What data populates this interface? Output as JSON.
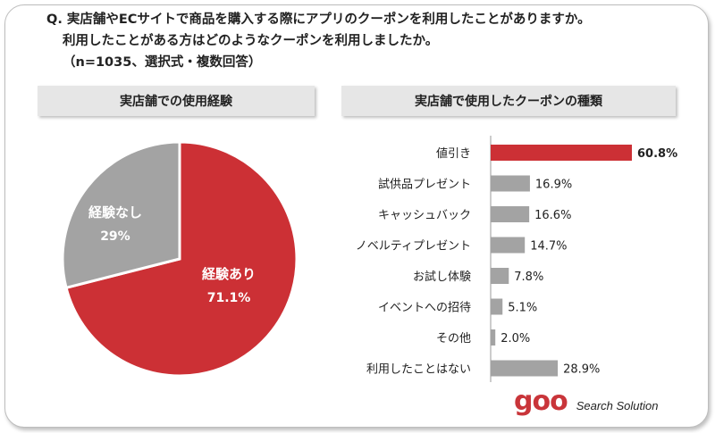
{
  "question": {
    "line1": "Q. 実店舗やECサイトで商品を購入する際にアプリのクーポンを利用したことがありますか。",
    "line2": "利用したことがある方はどのようなクーポンを利用しましたか。",
    "line3": "（n=1035、選択式・複数回答）"
  },
  "chart_data": [
    {
      "type": "pie",
      "title": "実店舗での使用経験",
      "slices": [
        {
          "label": "経験あり",
          "value": 71.1,
          "value_label": "71.1%",
          "color": "#cc3035"
        },
        {
          "label": "経験なし",
          "value": 29,
          "value_label": "29%",
          "color": "#a3a3a3"
        }
      ]
    },
    {
      "type": "bar",
      "orientation": "horizontal",
      "title": "実店舗で使用したクーポンの種類",
      "categories": [
        "値引き",
        "試供品プレゼント",
        "キャッシュバック",
        "ノベルティプレゼント",
        "お試し体験",
        "イベントへの招待",
        "その他",
        "利用したことはない"
      ],
      "values": [
        60.8,
        16.9,
        16.6,
        14.7,
        7.8,
        5.1,
        2.0,
        28.9
      ],
      "value_labels": [
        "60.8%",
        "16.9%",
        "16.6%",
        "14.7%",
        "7.8%",
        "5.1%",
        "2.0%",
        "28.9%"
      ],
      "colors": [
        "#cc3035",
        "#a3a3a3",
        "#a3a3a3",
        "#a3a3a3",
        "#a3a3a3",
        "#a3a3a3",
        "#a3a3a3",
        "#a3a3a3"
      ],
      "xlim": [
        0,
        60.8
      ]
    }
  ],
  "logo": {
    "brand": "goo",
    "tagline": "Search Solution"
  }
}
